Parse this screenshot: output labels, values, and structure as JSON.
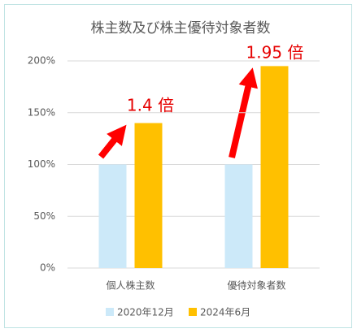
{
  "chart_data": {
    "type": "bar",
    "title": "株主数及び株主優待対象者数",
    "categories": [
      "個人株主数",
      "優待対象者数"
    ],
    "series": [
      {
        "name": "2020年12月",
        "color": "#cce9f9",
        "values": [
          100,
          100
        ]
      },
      {
        "name": "2024年6月",
        "color": "#ffc000",
        "values": [
          140,
          195
        ]
      }
    ],
    "ylim": [
      0,
      200
    ],
    "yticks": [
      {
        "value": 0,
        "label": "0%"
      },
      {
        "value": 50,
        "label": "50%"
      },
      {
        "value": 100,
        "label": "100%"
      },
      {
        "value": 150,
        "label": "150%"
      },
      {
        "value": 200,
        "label": "200%"
      }
    ],
    "grid": true,
    "legend": "bottom",
    "annotations": [
      "1.4 倍",
      "1.95 倍"
    ]
  }
}
